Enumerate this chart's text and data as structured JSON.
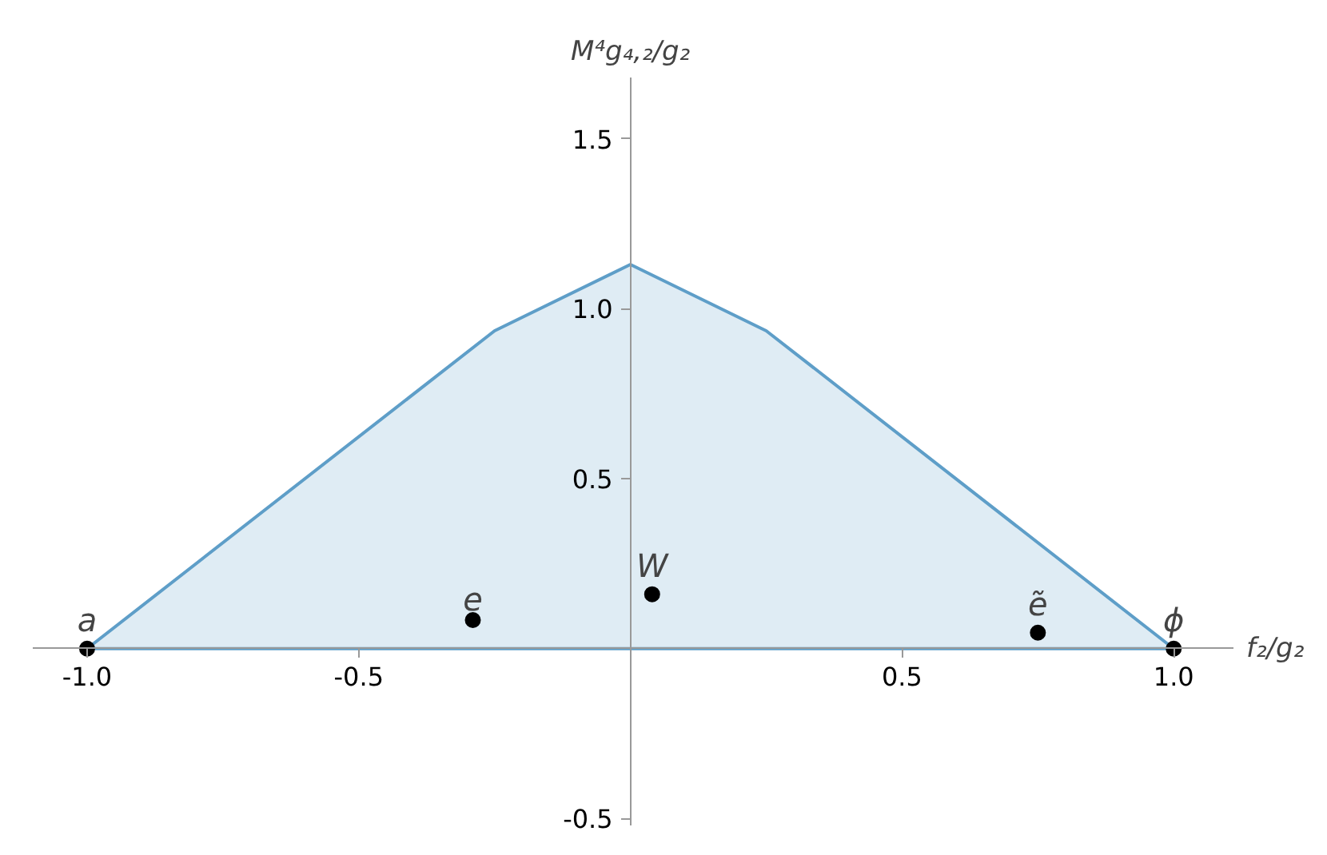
{
  "chart_data": {
    "type": "area",
    "xlabel": "f₂/g₂",
    "ylabel": "M⁴g₄,₂/g₂",
    "xlim": [
      -1.1,
      1.11
    ],
    "ylim": [
      -0.52,
      1.68
    ],
    "xticks": [
      {
        "value": -1,
        "label": "-1.0"
      },
      {
        "value": -0.5,
        "label": "-0.5"
      },
      {
        "value": 0.5,
        "label": "0.5"
      },
      {
        "value": 1,
        "label": "1.0"
      }
    ],
    "yticks": [
      {
        "value": -0.5,
        "label": "-0.5"
      },
      {
        "value": 0.5,
        "label": "0.5"
      },
      {
        "value": 1,
        "label": "1.0"
      },
      {
        "value": 1.5,
        "label": "1.5"
      }
    ],
    "grid": false,
    "series": [
      {
        "color": "#5e9ec8",
        "x": [
          -1,
          -0.25,
          0,
          0.25,
          1
        ],
        "values": [
          0,
          0.935,
          1.13,
          0.935,
          0
        ]
      },
      {
        "type": "scatter",
        "color": "#000000",
        "marker": "circle",
        "x": [
          -1,
          -0.29,
          0.04,
          0.75,
          1
        ],
        "values": [
          0,
          0.084,
          0.16,
          0.047,
          0
        ]
      }
    ],
    "annotations": [
      {
        "text": "a",
        "x": -1,
        "y": 0
      },
      {
        "text": "e",
        "x": -0.29,
        "y": 0.084
      },
      {
        "text": "W",
        "x": 0.04,
        "y": 0.16
      },
      {
        "text": "ẽ",
        "x": 0.75,
        "y": 0.047
      },
      {
        "text": "ϕ",
        "x": 1,
        "y": 0
      }
    ]
  }
}
